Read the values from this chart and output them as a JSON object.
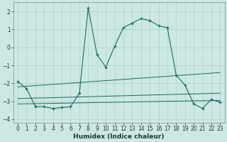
{
  "xlabel": "Humidex (Indice chaleur)",
  "xlim": [
    -0.5,
    23.5
  ],
  "ylim": [
    -4.2,
    2.5
  ],
  "yticks": [
    -4,
    -3,
    -2,
    -1,
    0,
    1,
    2
  ],
  "xticks": [
    0,
    1,
    2,
    3,
    4,
    5,
    6,
    7,
    8,
    9,
    10,
    11,
    12,
    13,
    14,
    15,
    16,
    17,
    18,
    19,
    20,
    21,
    22,
    23
  ],
  "bg_color": "#cce8e4",
  "grid_color": "#aacfcb",
  "line_color": "#1a6b5a",
  "line1_x": [
    0,
    1,
    2,
    3,
    4,
    5,
    6,
    7,
    8,
    9,
    10,
    11,
    12,
    13,
    14,
    15,
    16,
    17,
    18,
    19,
    20,
    21,
    22,
    23
  ],
  "line1_y": [
    -1.9,
    -2.3,
    -3.3,
    -3.3,
    -3.4,
    -3.35,
    -3.3,
    -2.55,
    2.2,
    -0.4,
    -1.1,
    0.05,
    1.1,
    1.35,
    1.6,
    1.5,
    1.2,
    1.1,
    -1.55,
    -2.1,
    -3.15,
    -3.4,
    -2.9,
    -3.05
  ],
  "line2_x": [
    0,
    23
  ],
  "line2_y": [
    -2.2,
    -1.4
  ],
  "line3_x": [
    0,
    23
  ],
  "line3_y": [
    -2.85,
    -2.55
  ],
  "line4_x": [
    0,
    23
  ],
  "line4_y": [
    -3.15,
    -2.95
  ]
}
